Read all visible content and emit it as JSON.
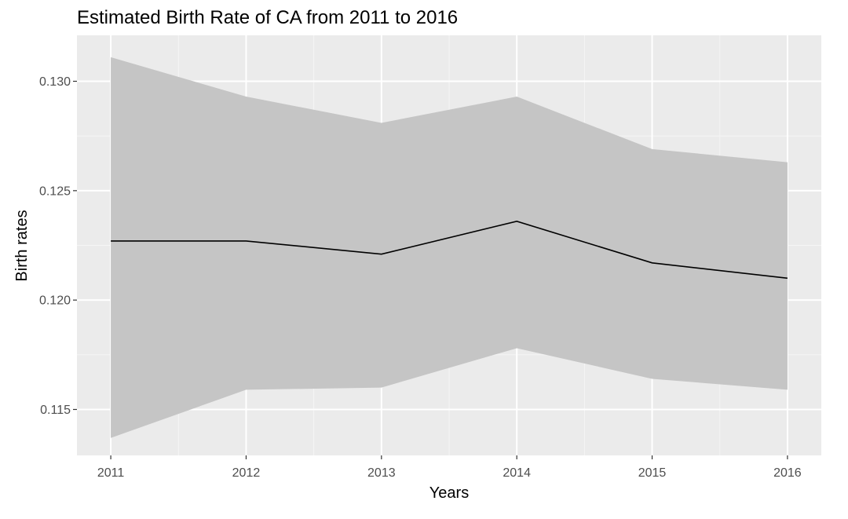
{
  "chart_data": {
    "type": "line",
    "title": "Estimated Birth Rate of CA from 2011 to 2016",
    "xlabel": "Years",
    "ylabel": "Birth rates",
    "x": [
      2011,
      2012,
      2013,
      2014,
      2015,
      2016
    ],
    "x_tick_labels": [
      "2011",
      "2012",
      "2013",
      "2014",
      "2015",
      "2016"
    ],
    "y_ticks": [
      0.115,
      0.12,
      0.125,
      0.13
    ],
    "y_tick_labels": [
      "0.115",
      "0.120",
      "0.125",
      "0.130"
    ],
    "xlim": [
      2010.75,
      2016.25
    ],
    "ylim": [
      0.1129,
      0.1321
    ],
    "grid": true,
    "series": [
      {
        "values": [
          0.1227,
          0.1227,
          0.1221,
          0.1236,
          0.1217,
          0.121
        ],
        "lower": [
          0.1137,
          0.1159,
          0.116,
          0.1178,
          0.1164,
          0.1159
        ],
        "upper": [
          0.1311,
          0.1293,
          0.1281,
          0.1293,
          0.1269,
          0.1263
        ],
        "line_color": "#000000",
        "band_color": "#c5c5c5"
      }
    ],
    "colors": {
      "panel_background": "#ebebeb",
      "grid_major": "#ffffff",
      "grid_minor": "#f5f5f5",
      "tick_text": "#4d4d4d",
      "tick_mark": "#333333"
    }
  }
}
